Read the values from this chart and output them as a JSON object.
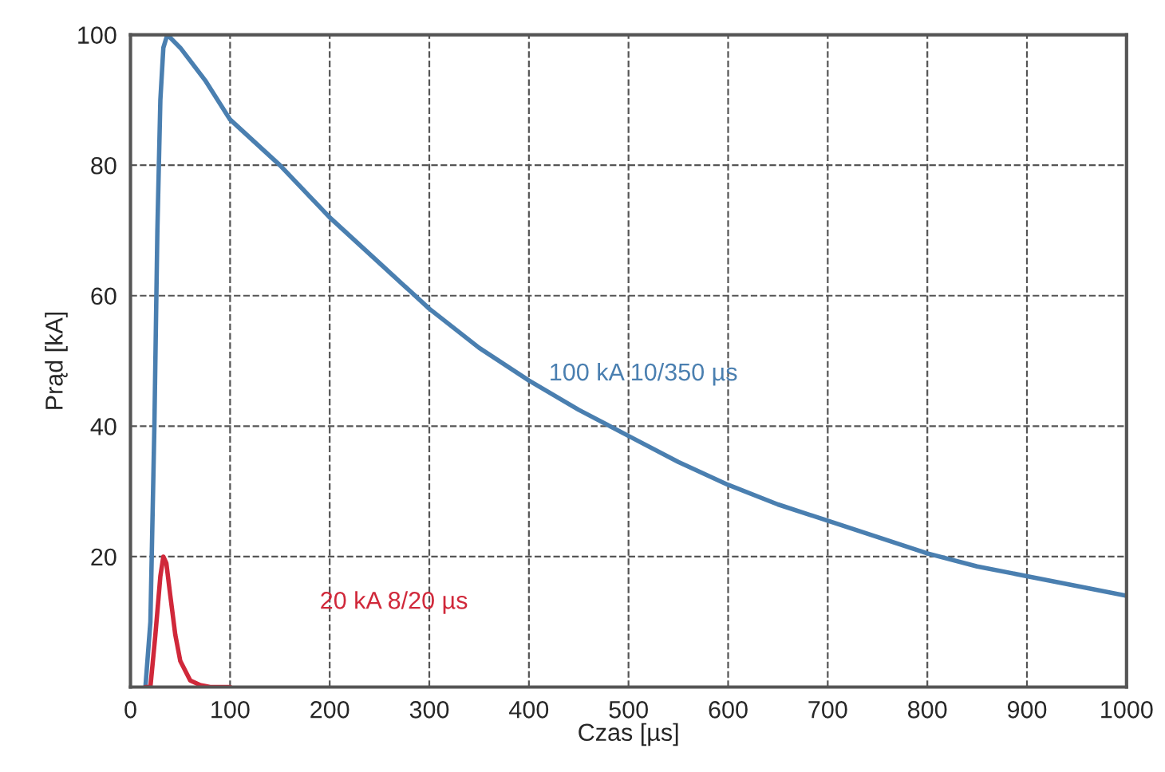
{
  "chart_data": {
    "type": "line",
    "xlabel": "Czas [µs]",
    "ylabel": "Prąd [kA]",
    "xlim": [
      0,
      1000
    ],
    "ylim": [
      0,
      100
    ],
    "xticks": [
      0,
      100,
      200,
      300,
      400,
      500,
      600,
      700,
      800,
      900,
      1000
    ],
    "yticks": [
      20,
      40,
      60,
      80,
      100
    ],
    "grid": true,
    "legend": false,
    "marker": "none",
    "line_style": "solid",
    "series": [
      {
        "name": "100 kA 10/350 µs",
        "color": "#4a7fb0",
        "x": [
          15,
          20,
          24,
          27,
          30,
          33,
          37,
          50,
          75,
          100,
          150,
          200,
          250,
          300,
          350,
          400,
          450,
          500,
          550,
          600,
          650,
          700,
          750,
          800,
          850,
          900,
          950,
          1000
        ],
        "values": [
          0,
          10,
          40,
          70,
          90,
          98,
          100,
          98,
          93,
          87,
          80,
          72,
          65,
          58,
          52,
          47,
          42.5,
          38.5,
          34.5,
          31,
          28,
          25.5,
          23,
          20.5,
          18.5,
          17,
          15.5,
          14
        ]
      },
      {
        "name": "20 kA 8/20 µs",
        "color": "#d0283a",
        "x": [
          15,
          20,
          25,
          30,
          33,
          36,
          40,
          45,
          50,
          60,
          70,
          80,
          100
        ],
        "values": [
          0,
          0,
          8,
          17,
          20,
          19,
          14,
          8,
          4,
          1,
          0.3,
          0,
          0
        ]
      }
    ]
  }
}
